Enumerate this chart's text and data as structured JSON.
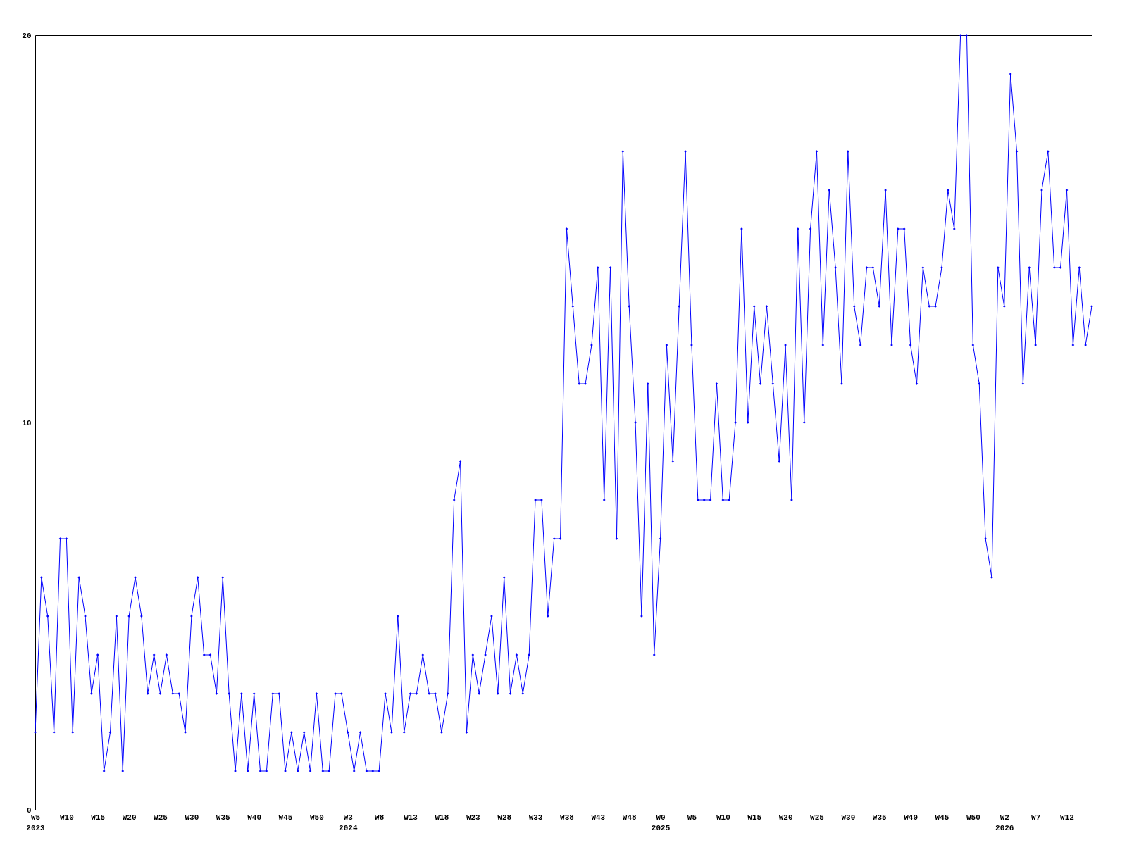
{
  "chart_data": {
    "type": "line",
    "categories": [
      "W5\n2023",
      null,
      null,
      null,
      null,
      "W10",
      null,
      null,
      null,
      null,
      "W15",
      null,
      null,
      null,
      null,
      "W20",
      null,
      null,
      null,
      null,
      "W25",
      null,
      null,
      null,
      null,
      "W30",
      null,
      null,
      null,
      null,
      "W35",
      null,
      null,
      null,
      null,
      "W40",
      null,
      null,
      null,
      null,
      "W45",
      null,
      null,
      null,
      null,
      "W50",
      null,
      null,
      null,
      null,
      "W3\n2024",
      null,
      null,
      null,
      null,
      "W8",
      null,
      null,
      null,
      null,
      "W13",
      null,
      null,
      null,
      null,
      "W18",
      null,
      null,
      null,
      null,
      "W23",
      null,
      null,
      null,
      null,
      "W28",
      null,
      null,
      null,
      null,
      "W33",
      null,
      null,
      null,
      null,
      "W38",
      null,
      null,
      null,
      null,
      "W43",
      null,
      null,
      null,
      null,
      "W48",
      null,
      null,
      null,
      null,
      "W0\n2025",
      null,
      null,
      null,
      null,
      "W5",
      null,
      null,
      null,
      null,
      "W10",
      null,
      null,
      null,
      null,
      "W15",
      null,
      null,
      null,
      null,
      "W20",
      null,
      null,
      null,
      null,
      "W25",
      null,
      null,
      null,
      null,
      "W30",
      null,
      null,
      null,
      null,
      "W35",
      null,
      null,
      null,
      null,
      "W40",
      null,
      null,
      null,
      null,
      "W45",
      null,
      null,
      null,
      null,
      "W50",
      null,
      null,
      null,
      null,
      "W2\n2026",
      null,
      null,
      null,
      null,
      "W7",
      null,
      null,
      null,
      null,
      "W12",
      null,
      null,
      null,
      null
    ],
    "series": [
      {
        "color": "#0000ff",
        "values": [
          2,
          6,
          5,
          2,
          7,
          7,
          2,
          6,
          5,
          3,
          4,
          1,
          2,
          5,
          1,
          5,
          6,
          5,
          3,
          4,
          3,
          4,
          3,
          3,
          2,
          5,
          6,
          4,
          4,
          3,
          6,
          3,
          1,
          3,
          1,
          3,
          1,
          1,
          3,
          3,
          1,
          2,
          1,
          2,
          1,
          3,
          1,
          1,
          3,
          3,
          2,
          1,
          2,
          1,
          1,
          1,
          3,
          2,
          5,
          2,
          3,
          3,
          4,
          3,
          3,
          2,
          3,
          8,
          9,
          2,
          4,
          3,
          4,
          5,
          3,
          6,
          3,
          4,
          3,
          4,
          8,
          8,
          5,
          7,
          7,
          15,
          13,
          11,
          11,
          12,
          14,
          8,
          14,
          7,
          17,
          13,
          10,
          5,
          11,
          4,
          7,
          12,
          9,
          13,
          17,
          12,
          8,
          8,
          8,
          11,
          8,
          8,
          10,
          15,
          10,
          13,
          11,
          13,
          11,
          9,
          12,
          8,
          15,
          10,
          15,
          17,
          12,
          16,
          14,
          11,
          17,
          13,
          12,
          14,
          14,
          13,
          16,
          12,
          15,
          15,
          12,
          11,
          14,
          13,
          13,
          14,
          16,
          15,
          20,
          20,
          12,
          11,
          7,
          6,
          14,
          13,
          19,
          17,
          11,
          14,
          12,
          16,
          17,
          14,
          14,
          16,
          12,
          14,
          12,
          13
        ]
      }
    ],
    "ylim": [
      0,
      20
    ],
    "yticks": [
      0,
      10,
      20
    ],
    "grid": "y",
    "marker": "diamond",
    "line_style": "solid"
  }
}
